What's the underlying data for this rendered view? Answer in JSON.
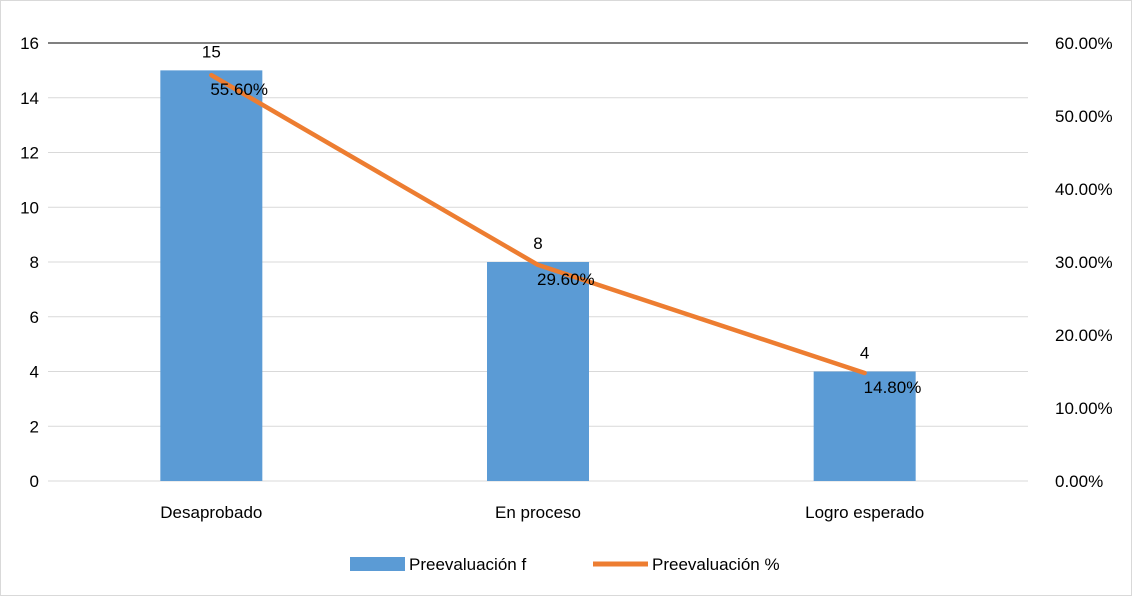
{
  "chart_data": {
    "type": "bar",
    "title": "",
    "categories": [
      "Desaprobado",
      "En proceso",
      "Logro esperado"
    ],
    "series": [
      {
        "name": "Preevaluación f",
        "type": "bar",
        "axis": "left",
        "color": "#5b9bd5",
        "values": [
          15,
          8,
          4
        ],
        "labels": [
          "15",
          "8",
          "4"
        ]
      },
      {
        "name": "Preevaluación %",
        "type": "line",
        "axis": "right",
        "color": "#ed7d31",
        "values": [
          55.6,
          29.6,
          14.8
        ],
        "labels": [
          "55.60%",
          "29.60%",
          "14.80%"
        ]
      }
    ],
    "y_left": {
      "min": 0,
      "max": 16,
      "ticks": [
        0,
        2,
        4,
        6,
        8,
        10,
        12,
        14,
        16
      ],
      "tick_labels": [
        "0",
        "2",
        "4",
        "6",
        "8",
        "10",
        "12",
        "14",
        "16"
      ]
    },
    "y_right": {
      "min": 0,
      "max": 60,
      "ticks": [
        0,
        10,
        20,
        30,
        40,
        50,
        60
      ],
      "tick_labels": [
        "0.00%",
        "10.00%",
        "20.00%",
        "30.00%",
        "40.00%",
        "50.00%",
        "60.00%"
      ]
    },
    "grid": true,
    "legend_position": "bottom"
  }
}
